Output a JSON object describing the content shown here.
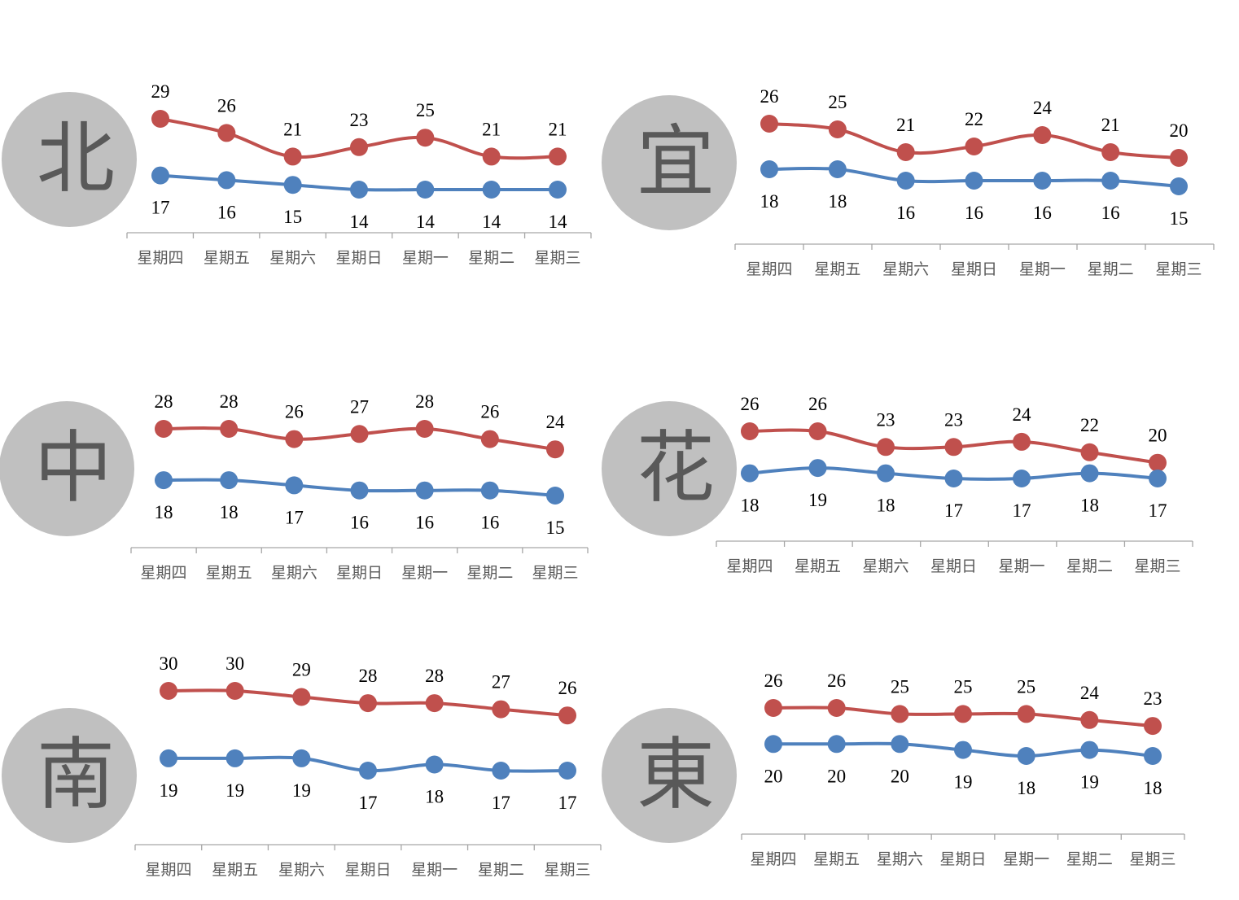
{
  "colors": {
    "high": "#c0504d",
    "low": "#4f81bd",
    "badge_fill": "#c0c0c0",
    "badge_text": "#595959",
    "axis": "#a6a6a6",
    "label": "#000000",
    "tick_label": "#595959"
  },
  "chart_data": [
    {
      "type": "line",
      "region": "北",
      "categories": [
        "星期四",
        "星期五",
        "星期六",
        "星期日",
        "星期一",
        "星期二",
        "星期三"
      ],
      "series": [
        {
          "values": [
            29,
            26,
            21,
            23,
            25,
            21,
            21
          ]
        },
        {
          "values": [
            17,
            16,
            15,
            14,
            14,
            14,
            14
          ]
        }
      ],
      "grid": false,
      "legend": "none"
    },
    {
      "type": "line",
      "region": "宜",
      "categories": [
        "星期四",
        "星期五",
        "星期六",
        "星期日",
        "星期一",
        "星期二",
        "星期三"
      ],
      "series": [
        {
          "values": [
            26,
            25,
            21,
            22,
            24,
            21,
            20
          ]
        },
        {
          "values": [
            18,
            18,
            16,
            16,
            16,
            16,
            15
          ]
        }
      ],
      "grid": false,
      "legend": "none"
    },
    {
      "type": "line",
      "region": "中",
      "categories": [
        "星期四",
        "星期五",
        "星期六",
        "星期日",
        "星期一",
        "星期二",
        "星期三"
      ],
      "series": [
        {
          "values": [
            28,
            28,
            26,
            27,
            28,
            26,
            24
          ]
        },
        {
          "values": [
            18,
            18,
            17,
            16,
            16,
            16,
            15
          ]
        }
      ],
      "grid": false,
      "legend": "none"
    },
    {
      "type": "line",
      "region": "花",
      "categories": [
        "星期四",
        "星期五",
        "星期六",
        "星期日",
        "星期一",
        "星期二",
        "星期三"
      ],
      "series": [
        {
          "values": [
            26,
            26,
            23,
            23,
            24,
            22,
            20
          ]
        },
        {
          "values": [
            18,
            19,
            18,
            17,
            17,
            18,
            17
          ]
        }
      ],
      "grid": false,
      "legend": "none"
    },
    {
      "type": "line",
      "region": "南",
      "categories": [
        "星期四",
        "星期五",
        "星期六",
        "星期日",
        "星期一",
        "星期二",
        "星期三"
      ],
      "series": [
        {
          "values": [
            30,
            30,
            29,
            28,
            28,
            27,
            26
          ]
        },
        {
          "values": [
            19,
            19,
            19,
            17,
            18,
            17,
            17
          ]
        }
      ],
      "grid": false,
      "legend": "none"
    },
    {
      "type": "line",
      "region": "東",
      "categories": [
        "星期四",
        "星期五",
        "星期六",
        "星期日",
        "星期一",
        "星期二",
        "星期三"
      ],
      "series": [
        {
          "values": [
            26,
            26,
            25,
            25,
            25,
            24,
            23
          ]
        },
        {
          "values": [
            20,
            20,
            20,
            19,
            18,
            19,
            18
          ]
        }
      ],
      "grid": false,
      "legend": "none"
    }
  ]
}
